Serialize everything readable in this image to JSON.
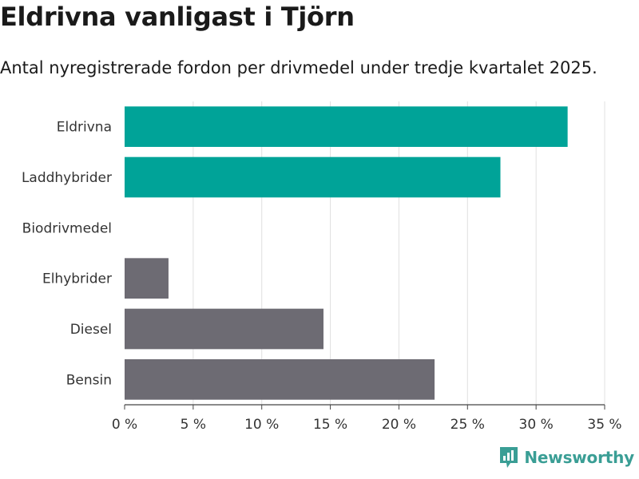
{
  "title": "Eldrivna vanligast i Tjörn",
  "subtitle": "Antal nyregistrerade fordon per drivmedel under tredje kvartalet 2025.",
  "brand": {
    "name": "Newsworthy",
    "icon": "newsworthy-logo-icon"
  },
  "colors": {
    "highlight": "#00a398",
    "default": "#6d6b73",
    "grid": "#e0e0e0",
    "brand": "#3a9e95"
  },
  "chart_data": {
    "type": "bar",
    "orientation": "horizontal",
    "categories": [
      "Eldrivna",
      "Laddhybrider",
      "Biodrivmedel",
      "Elhybrider",
      "Diesel",
      "Bensin"
    ],
    "values": [
      32.3,
      27.4,
      0,
      3.2,
      14.5,
      22.6
    ],
    "highlighted": [
      true,
      true,
      false,
      false,
      false,
      false
    ],
    "xlim": [
      0,
      35
    ],
    "xticks": [
      0,
      5,
      10,
      15,
      20,
      25,
      30,
      35
    ],
    "tick_format": "{v} %",
    "xlabel": "",
    "ylabel": "",
    "grid": true
  }
}
